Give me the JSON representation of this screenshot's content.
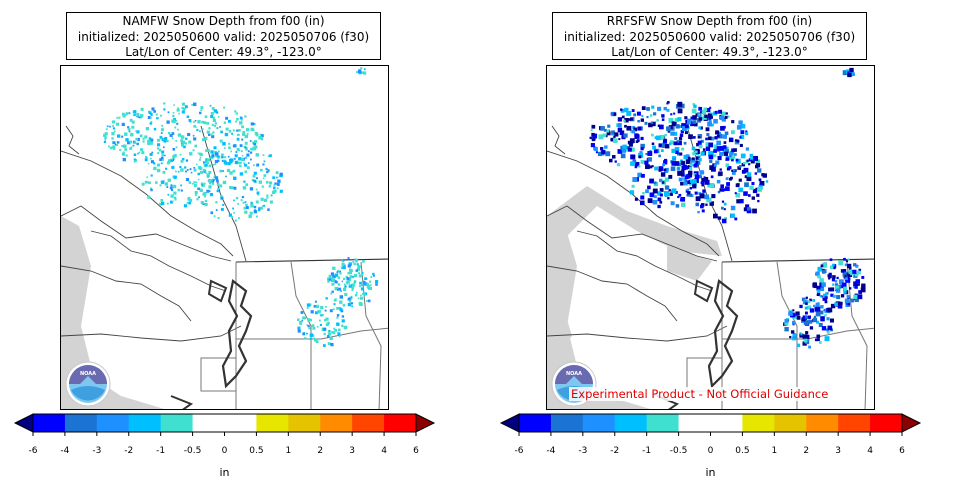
{
  "panels": [
    {
      "title_line1": "NAMFW Snow Depth from f00 (in)",
      "title_line2": "initialized: 2025050600 valid: 2025050706 (f30)",
      "title_line3": "Lat/Lon of Center: 49.3°, -123.0°",
      "logo_text": "NOAA",
      "experimental_label": ""
    },
    {
      "title_line1": "RRFSFW Snow Depth from f00 (in)",
      "title_line2": "initialized: 2025050600 valid: 2025050706 (f30)",
      "title_line3": "Lat/Lon of Center: 49.3°, -123.0°",
      "logo_text": "NOAA",
      "experimental_label": "Experimental Product - Not Official Guidance"
    }
  ],
  "colorbar": {
    "unit_label": "in",
    "ticks": [
      "-6",
      "-4",
      "-3",
      "-2",
      "-1",
      "-0.5",
      "0",
      "0.5",
      "1",
      "2",
      "3",
      "4",
      "6"
    ],
    "colors": [
      "#0000ff",
      "#1b73d3",
      "#1f90ff",
      "#00bfff",
      "#40e0d0",
      "#ffffff",
      "#ffffff",
      "#e6e600",
      "#e6c300",
      "#ff8c00",
      "#ff4500",
      "#ff0000"
    ],
    "under_color": "#000080",
    "over_color": "#8b0000"
  },
  "chart_data": [
    {
      "type": "heatmap",
      "title": "NAMFW Snow Depth from f00 (in)",
      "subtitle": "initialized: 2025050600 valid: 2025050706 (f30)",
      "units": "in",
      "color_levels": [
        -6,
        -4,
        -3,
        -2,
        -1,
        -0.5,
        0,
        0.5,
        1,
        2,
        3,
        4,
        6
      ],
      "legend": "bottom",
      "dominant_values": "-1 to -0.5 (turquoise) over northern mountains and Cascades"
    },
    {
      "type": "heatmap",
      "title": "RRFSFW Snow Depth from f00 (in)",
      "subtitle": "initialized: 2025050600 valid: 2025050706 (f30)",
      "units": "in",
      "color_levels": [
        -6,
        -4,
        -3,
        -2,
        -1,
        -0.5,
        0,
        0.5,
        1,
        2,
        3,
        4,
        6
      ],
      "legend": "bottom",
      "dominant_values": "below -6 to -2 (dark blue) over northern mountains and Cascades"
    }
  ]
}
